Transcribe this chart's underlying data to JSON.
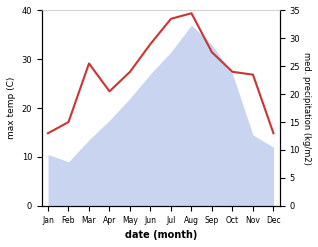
{
  "months": [
    "Jan",
    "Feb",
    "Mar",
    "Apr",
    "May",
    "Jun",
    "Jul",
    "Aug",
    "Sep",
    "Oct",
    "Nov",
    "Dec"
  ],
  "temp": [
    10.5,
    9.0,
    13.5,
    17.5,
    22.0,
    27.0,
    31.5,
    37.0,
    33.0,
    27.0,
    14.5,
    12.0
  ],
  "precip": [
    13.0,
    15.0,
    25.5,
    20.5,
    24.0,
    29.0,
    33.5,
    34.5,
    27.5,
    24.0,
    23.5,
    13.0
  ],
  "temp_fill_color": "#c8d4f0",
  "precip_line_color": "#cc3333",
  "temp_ylim": [
    0,
    40
  ],
  "precip_ylim": [
    0,
    35
  ],
  "xlabel": "date (month)",
  "ylabel_left": "max temp (C)",
  "ylabel_right": "med. precipitation (kg/m2)",
  "background_color": "#ffffff",
  "temp_yticks": [
    0,
    10,
    20,
    30,
    40
  ],
  "precip_yticks": [
    0,
    5,
    10,
    15,
    20,
    25,
    30,
    35
  ]
}
